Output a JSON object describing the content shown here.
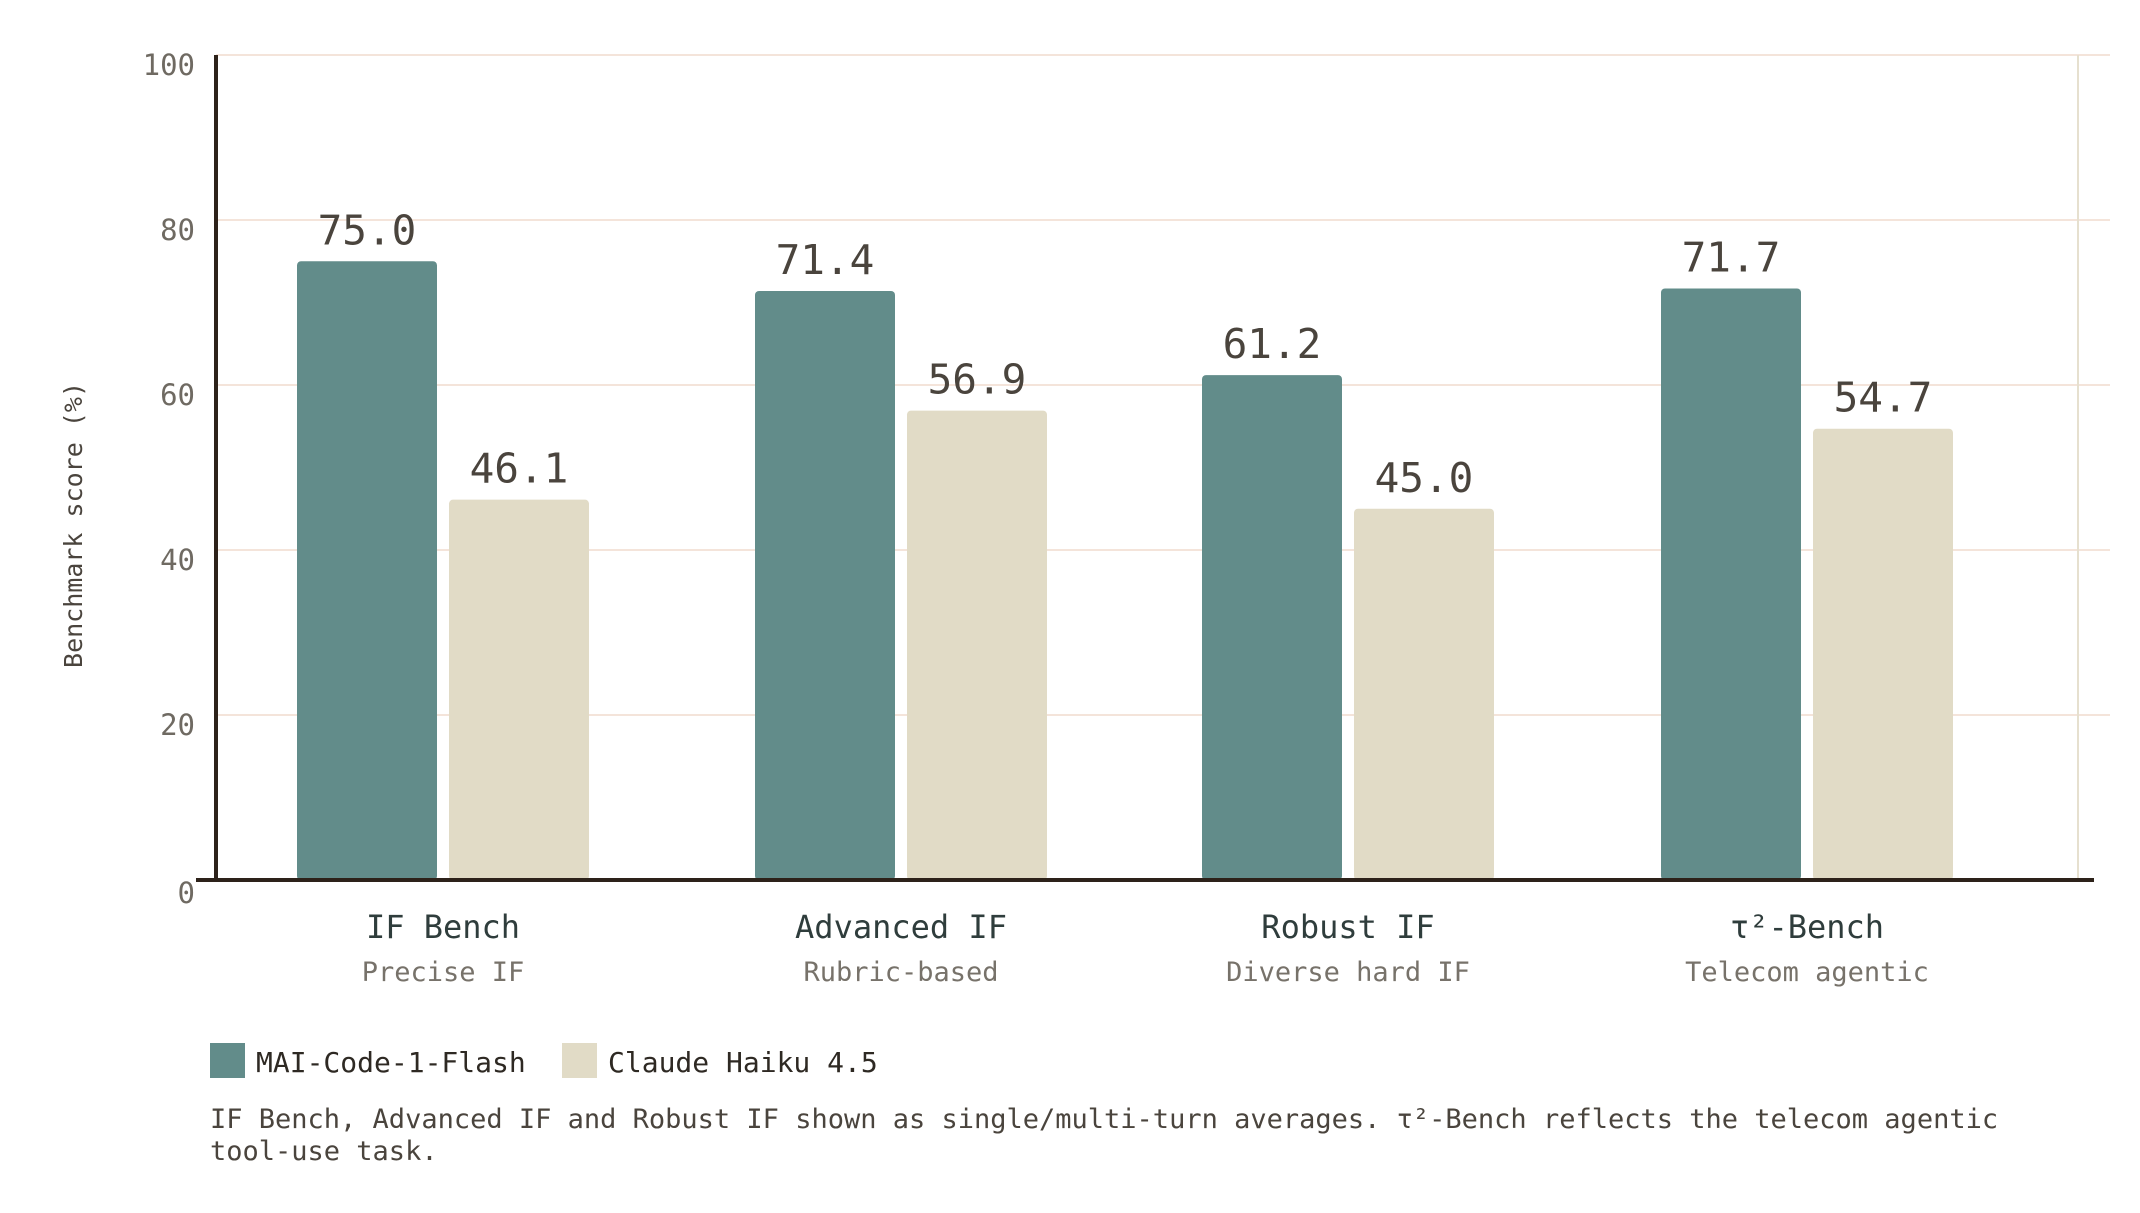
{
  "chart_data": {
    "type": "bar",
    "title": "",
    "xlabel": "",
    "ylabel": "Benchmark score (%)",
    "ylim": [
      0,
      100
    ],
    "yticks": [
      "0",
      "20",
      "40",
      "60",
      "80",
      "100"
    ],
    "grid": true,
    "categories": [
      "IF Bench",
      "Advanced IF",
      "Robust IF",
      "τ²-Bench"
    ],
    "subtitles": [
      "Precise IF",
      "Rubric-based",
      "Diverse hard IF",
      "Telecom agentic"
    ],
    "series": [
      {
        "name": "MAI-Code-1-Flash",
        "color": "#628c8a",
        "values": [
          75.0,
          71.4,
          61.2,
          71.7
        ],
        "labels": [
          "75.0",
          "71.4",
          "61.2",
          "71.7"
        ]
      },
      {
        "name": "Claude Haiku 4.5",
        "color": "#e1dbc6",
        "values": [
          46.1,
          56.9,
          45.0,
          54.7
        ],
        "labels": [
          "46.1",
          "56.9",
          "45.0",
          "54.7"
        ]
      }
    ],
    "legend_position": "bottom-left",
    "footnote": [
      "IF Bench, Advanced IF and Robust IF shown as single/multi-turn averages.  τ²-Bench reflects the telecom agentic",
      "tool-use task."
    ]
  },
  "colors": {
    "grid": "#f4e4da",
    "axis": "#2d221a",
    "right_border": "#e6e0cf"
  }
}
